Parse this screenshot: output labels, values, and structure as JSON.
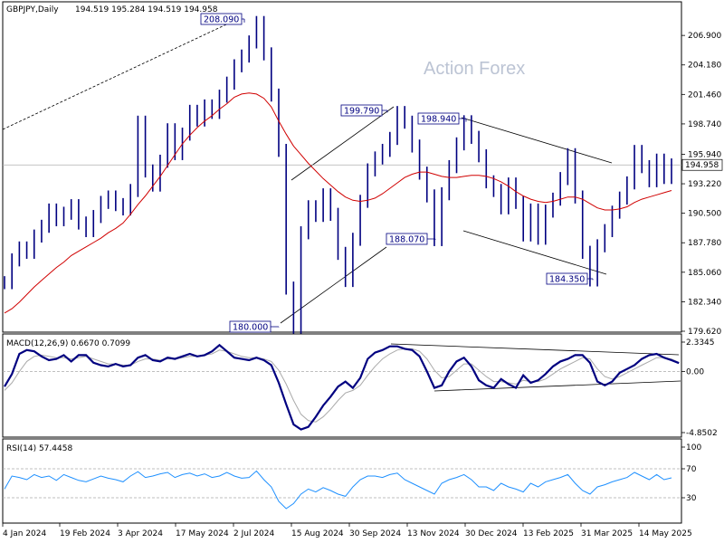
{
  "header": {
    "symbol": "GBPJPY,Daily",
    "ohlc": "194.519 195.284 194.519 194.958"
  },
  "watermark": "Action Forex",
  "colors": {
    "price": "#000080",
    "ma": "#d00000",
    "macd": "#000080",
    "signal": "#aaaaaa",
    "rsi": "#1e90ff",
    "trendline": "#000000",
    "grid": "#dddddd"
  },
  "chart_data": [
    {
      "type": "line",
      "name": "price-panel",
      "title": "GBPJPY,Daily",
      "ylim": [
        179.62,
        209.5
      ],
      "y_ticks": [
        206.9,
        204.18,
        201.46,
        198.74,
        195.94,
        193.22,
        190.5,
        187.78,
        185.06,
        182.34,
        179.62
      ],
      "current_price_label": "194.958",
      "current_price": 194.958,
      "x_labels": [
        "4 Jan 2024",
        "19 Feb 2024",
        "3 Apr 2024",
        "17 May 2024",
        "2 Jul 2024",
        "15 Aug 2024",
        "30 Sep 2024",
        "13 Nov 2024",
        "30 Dec 2024",
        "13 Feb 2025",
        "31 Mar 2025",
        "14 May 2025"
      ],
      "series": [
        {
          "values": [
            184.1,
            186.2,
            187.3,
            186.9,
            188.4,
            189.3,
            190.8,
            189.9,
            190.5,
            191.2,
            189.6,
            188.9,
            190.2,
            191.5,
            192.0,
            191.3,
            190.9,
            192.6,
            198.9,
            194.4,
            193.1,
            195.3,
            198.2,
            196.0,
            197.8,
            199.9,
            199.1,
            200.4,
            199.8,
            201.3,
            202.5,
            204.1,
            205.0,
            206.3,
            208.09,
            205.2,
            201.4,
            196.3,
            183.6,
            180.0,
            188.7,
            191.1,
            190.3,
            192.2,
            190.4,
            186.8,
            184.3,
            188.1,
            191.6,
            194.5,
            195.6,
            196.3,
            197.4,
            199.79,
            198.9,
            196.7,
            194.2,
            192.1,
            188.07,
            192.3,
            194.8,
            196.9,
            198.94,
            197.5,
            195.8,
            193.4,
            192.6,
            191.0,
            193.2,
            191.5,
            188.5,
            190.8,
            188.2,
            190.7,
            191.8,
            193.7,
            195.9,
            192.0,
            186.9,
            184.35,
            187.5,
            188.9,
            190.6,
            191.9,
            193.3,
            196.2,
            194.8,
            193.5,
            195.4,
            193.8,
            194.958
          ]
        },
        {
          "name": "MA",
          "values": [
            181.3,
            181.7,
            182.3,
            183.0,
            183.7,
            184.3,
            184.9,
            185.5,
            186.0,
            186.6,
            187.0,
            187.4,
            187.8,
            188.2,
            188.7,
            189.1,
            189.6,
            190.4,
            191.3,
            192.1,
            193.0,
            193.9,
            194.9,
            195.9,
            196.9,
            197.7,
            198.4,
            199.0,
            199.5,
            200.1,
            200.6,
            201.2,
            201.5,
            201.6,
            201.5,
            201.1,
            200.3,
            199.0,
            197.8,
            196.7,
            195.9,
            195.1,
            194.4,
            193.7,
            193.1,
            192.5,
            192.0,
            191.7,
            191.6,
            191.7,
            191.9,
            192.3,
            192.8,
            193.3,
            193.8,
            194.1,
            194.3,
            194.3,
            194.1,
            193.9,
            193.8,
            193.8,
            193.9,
            194.0,
            194.0,
            193.9,
            193.7,
            193.4,
            193.0,
            192.5,
            192.1,
            191.8,
            191.6,
            191.5,
            191.6,
            191.8,
            192.0,
            192.0,
            191.8,
            191.4,
            191.0,
            190.8,
            190.8,
            190.9,
            191.1,
            191.5,
            191.8,
            192.0,
            192.2,
            192.4,
            192.6
          ]
        }
      ],
      "annotations": [
        {
          "label": "208.090",
          "value": 208.09
        },
        {
          "label": "199.790",
          "value": 199.79
        },
        {
          "label": "198.940",
          "value": 198.94
        },
        {
          "label": "188.070",
          "value": 188.07
        },
        {
          "label": "184.350",
          "value": 184.35
        },
        {
          "label": "180.000",
          "value": 180.0
        }
      ]
    },
    {
      "type": "line",
      "name": "macd-panel",
      "title": "MACD(12,26,9) 0.6670 0.7099",
      "ylim": [
        -4.85,
        2.3345
      ],
      "y_ticks": [
        2.3345,
        0.0,
        -4.8502
      ],
      "y_tick_labels": [
        "2.3345",
        "0.00",
        "-4.8502"
      ],
      "series": [
        {
          "name": "MACD",
          "values": [
            -1.2,
            -0.2,
            1.4,
            1.7,
            1.6,
            1.2,
            0.9,
            1.0,
            1.3,
            0.8,
            1.3,
            1.3,
            0.7,
            0.5,
            0.4,
            0.6,
            0.4,
            0.5,
            1.1,
            1.3,
            0.9,
            0.8,
            1.1,
            1.0,
            1.2,
            1.4,
            1.2,
            1.3,
            1.6,
            2.1,
            1.6,
            1.1,
            1.0,
            0.9,
            1.1,
            0.9,
            0.5,
            -0.9,
            -2.6,
            -4.2,
            -4.6,
            -4.4,
            -3.6,
            -2.7,
            -2.0,
            -1.2,
            -0.8,
            -1.3,
            -0.5,
            1.0,
            1.5,
            1.7,
            2.0,
            2.0,
            1.8,
            1.7,
            1.2,
            0.0,
            -1.3,
            -1.1,
            0.0,
            0.8,
            1.1,
            0.4,
            -0.7,
            -1.1,
            -1.3,
            -0.6,
            -1.0,
            -1.3,
            -0.3,
            -0.9,
            -0.7,
            -0.2,
            0.4,
            0.8,
            1.0,
            1.3,
            1.3,
            0.7,
            -0.8,
            -1.1,
            -0.8,
            -0.1,
            0.2,
            0.5,
            1.0,
            1.3,
            1.4,
            1.1,
            0.9,
            0.667
          ]
        },
        {
          "name": "Signal",
          "values": [
            -1.5,
            -0.9,
            0.0,
            0.8,
            1.2,
            1.3,
            1.2,
            1.1,
            1.1,
            1.0,
            1.1,
            1.2,
            1.0,
            0.8,
            0.6,
            0.6,
            0.5,
            0.5,
            0.8,
            1.0,
            1.0,
            0.9,
            1.0,
            1.0,
            1.1,
            1.2,
            1.2,
            1.3,
            1.4,
            1.7,
            1.6,
            1.4,
            1.2,
            1.1,
            1.1,
            1.0,
            0.8,
            0.1,
            -1.0,
            -2.3,
            -3.4,
            -3.9,
            -4.0,
            -3.6,
            -3.0,
            -2.3,
            -1.7,
            -1.5,
            -1.1,
            -0.3,
            0.4,
            1.0,
            1.4,
            1.7,
            1.8,
            1.8,
            1.6,
            1.0,
            0.1,
            -0.5,
            -0.4,
            0.1,
            0.6,
            0.6,
            0.1,
            -0.4,
            -0.8,
            -0.8,
            -0.9,
            -1.0,
            -0.7,
            -0.8,
            -0.8,
            -0.6,
            -0.2,
            0.2,
            0.5,
            0.8,
            1.1,
            1.0,
            0.2,
            -0.4,
            -0.6,
            -0.4,
            -0.1,
            0.2,
            0.5,
            0.8,
            1.1,
            1.1,
            1.0,
            0.71
          ]
        }
      ]
    },
    {
      "type": "line",
      "name": "rsi-panel",
      "title": "RSI(14) 57.4458",
      "ylim": [
        0,
        100
      ],
      "y_ticks": [
        100,
        70,
        30,
        0
      ],
      "y_tick_labels": [
        "100",
        "70",
        "30",
        "0"
      ],
      "series": [
        {
          "name": "RSI",
          "values": [
            42,
            60,
            58,
            55,
            62,
            58,
            60,
            54,
            62,
            58,
            54,
            52,
            56,
            60,
            57,
            55,
            52,
            60,
            66,
            58,
            60,
            63,
            65,
            58,
            62,
            64,
            60,
            63,
            58,
            60,
            65,
            60,
            57,
            58,
            67,
            55,
            45,
            25,
            15,
            22,
            35,
            42,
            38,
            44,
            40,
            35,
            32,
            45,
            55,
            60,
            60,
            58,
            62,
            64,
            55,
            50,
            45,
            40,
            35,
            50,
            55,
            58,
            62,
            55,
            45,
            45,
            40,
            50,
            45,
            42,
            38,
            50,
            45,
            52,
            55,
            58,
            62,
            50,
            40,
            35,
            45,
            48,
            52,
            55,
            58,
            65,
            60,
            55,
            62,
            55,
            57.4458
          ]
        }
      ]
    }
  ]
}
